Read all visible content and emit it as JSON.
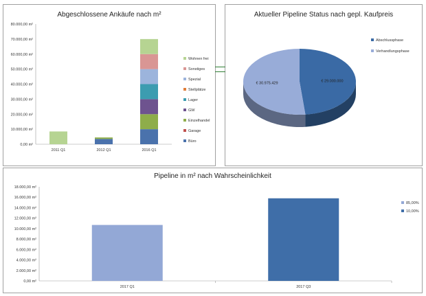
{
  "chart_data": [
    {
      "type": "bar",
      "stacked": true,
      "title": "Abgeschlossene Ankäufe nach m²",
      "categories": [
        "2011 Q1",
        "2012 Q1",
        "2016 Q1"
      ],
      "ylim": [
        0,
        80000
      ],
      "yticks": [
        "0,00 m²",
        "10.000,00 m²",
        "20.000,00 m²",
        "30.000,00 m²",
        "40.000,00 m²",
        "50.000,00 m²",
        "60.000,00 m²",
        "70.000,00 m²",
        "80.000,00 m²"
      ],
      "legend_position": "right",
      "series": [
        {
          "name": "Büro",
          "color": "#4a72ac",
          "values": [
            0,
            3500,
            10000
          ]
        },
        {
          "name": "Garage",
          "color": "#c0504d",
          "values": [
            0,
            0,
            0
          ]
        },
        {
          "name": "Einzelhandel",
          "color": "#8ead4a",
          "values": [
            0,
            1000,
            10000
          ]
        },
        {
          "name": "GW",
          "color": "#6e538f",
          "values": [
            0,
            0,
            10000
          ]
        },
        {
          "name": "Lager",
          "color": "#3c9cb0",
          "values": [
            0,
            0,
            10000
          ]
        },
        {
          "name": "Stellplätze",
          "color": "#e07d39",
          "values": [
            0,
            0,
            0
          ]
        },
        {
          "name": "Spezial",
          "color": "#9cb4dc",
          "values": [
            0,
            0,
            10000
          ]
        },
        {
          "name": "Sonstiges",
          "color": "#d99694",
          "values": [
            0,
            0,
            10000
          ]
        },
        {
          "name": "Wohnen frei",
          "color": "#b6d492",
          "values": [
            8500,
            0,
            10000
          ]
        }
      ]
    },
    {
      "type": "pie",
      "three_d": true,
      "title": "Aktueller Pipeline Status nach gepl. Kaufpreis",
      "legend_position": "top-right",
      "slices": [
        {
          "name": "Abschlussphase",
          "value": 29000000,
          "label": "€ 29.000.000",
          "color": "#3a6aa5"
        },
        {
          "name": "Verhandlungsphase",
          "value": 30975429,
          "label": "€ 30.975.429",
          "color": "#98acd8"
        }
      ]
    },
    {
      "type": "bar",
      "title": "Pipeline in m² nach Wahrscheinlichkeit",
      "categories": [
        "2017 Q1",
        "2017 Q3"
      ],
      "ylim": [
        0,
        18000
      ],
      "yticks": [
        "0,00 m²",
        "2.000,00 m²",
        "4.000,00 m²",
        "6.000,00 m²",
        "8.000,00 m²",
        "10.000,00 m²",
        "12.000,00 m²",
        "14.000,00 m²",
        "16.000,00 m²",
        "18.000,00 m²"
      ],
      "legend_position": "right",
      "series": [
        {
          "name": "85,00%",
          "color": "#93a8d6",
          "values": [
            10700,
            0
          ]
        },
        {
          "name": "10,00%",
          "color": "#3f6ea8",
          "values": [
            0,
            15800
          ]
        }
      ]
    }
  ]
}
